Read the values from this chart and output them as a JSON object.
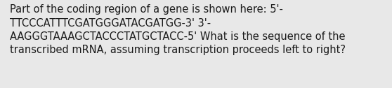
{
  "text": "Part of the coding region of a gene is shown here: 5'-\nTTCCCATTTCGATGGGATACGATGG-3' 3'-\nAAGGGTAAAGCTACCCTATGCTACC-5' What is the sequence of the\ntranscribed mRNA, assuming transcription proceeds left to right?",
  "background_color": "#e8e8e8",
  "text_color": "#1a1a1a",
  "font_size": 10.5,
  "fig_width": 5.58,
  "fig_height": 1.26
}
